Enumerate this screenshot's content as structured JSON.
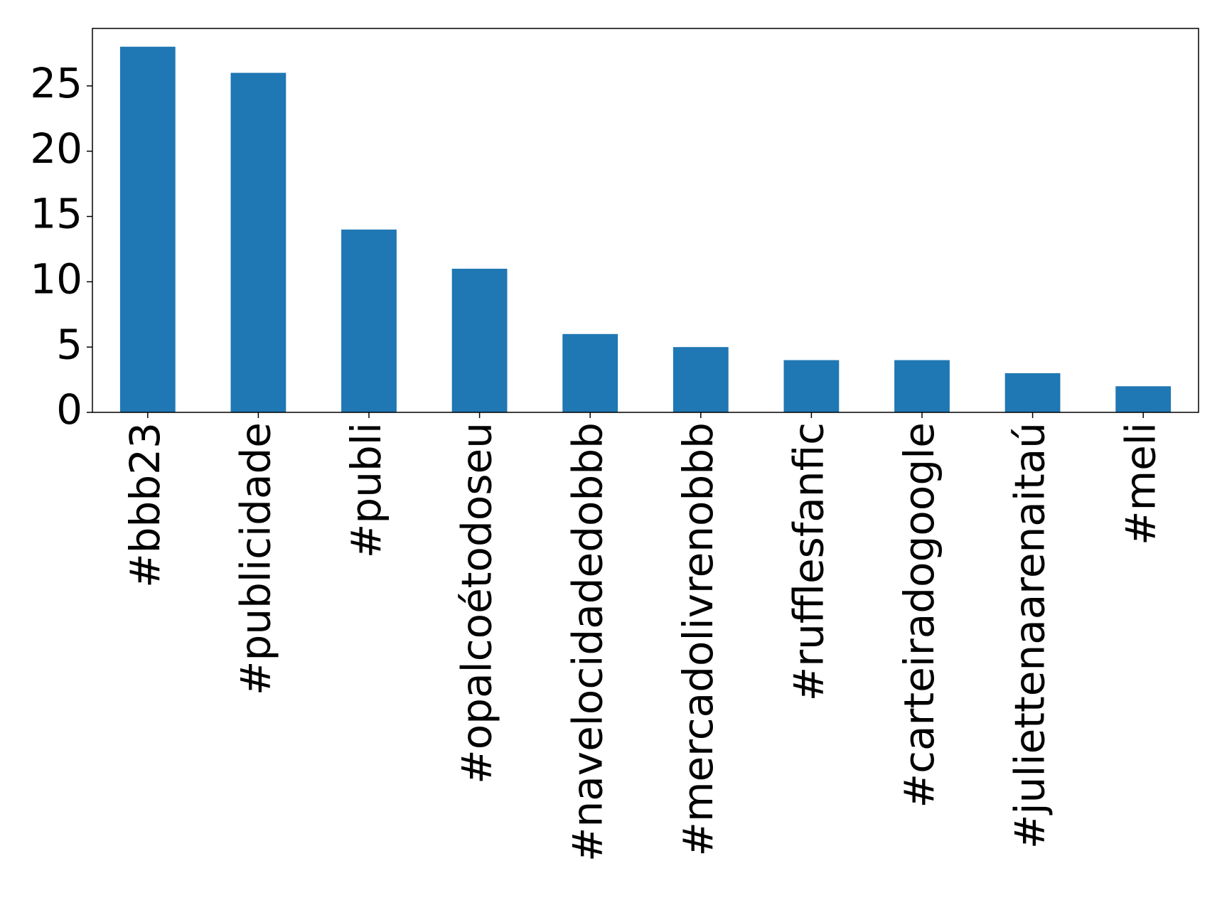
{
  "chart_data": {
    "type": "bar",
    "categories": [
      "#bbb23",
      "#publicidade",
      "#publi",
      "#opalcoétodoseu",
      "#navelocidadedobbb",
      "#mercadolivrenobbb",
      "#rufflesfanfic",
      "#carteiradogoogle",
      "#juliettenaarenaitaú",
      "#meli"
    ],
    "values": [
      28,
      26,
      14,
      11,
      6,
      5,
      4,
      4,
      3,
      2
    ],
    "color": "#1f77b4",
    "ylim": [
      0,
      29.4
    ],
    "yticks": [
      0,
      5,
      10,
      15,
      20,
      25
    ],
    "grid": false
  }
}
